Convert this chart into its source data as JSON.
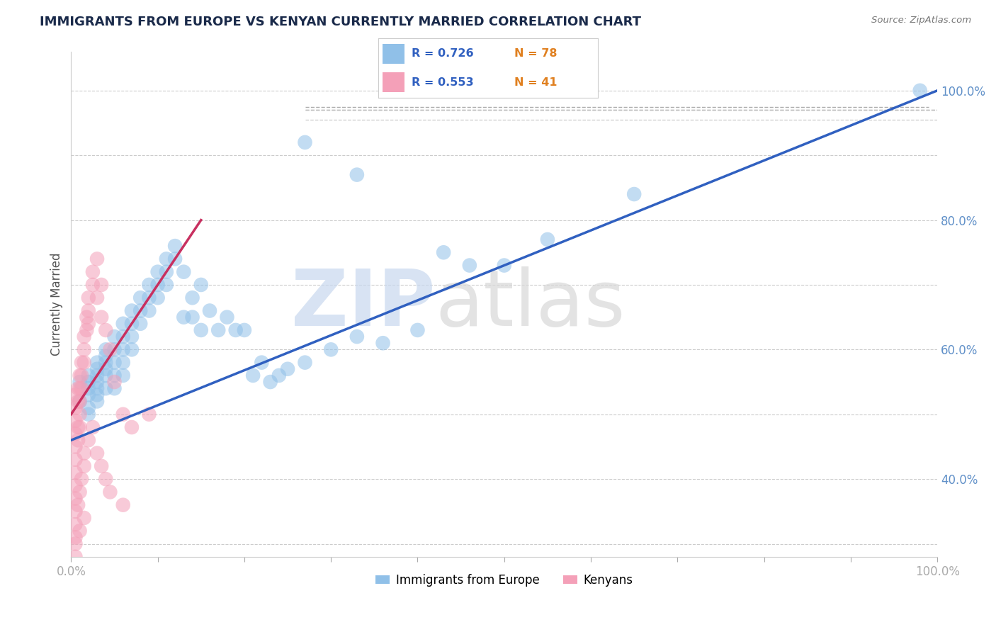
{
  "title": "IMMIGRANTS FROM EUROPE VS KENYAN CURRENTLY MARRIED CORRELATION CHART",
  "source": "Source: ZipAtlas.com",
  "ylabel_left": "Currently Married",
  "blue_color": "#90C0E8",
  "pink_color": "#F4A0B8",
  "blue_line_color": "#3060C0",
  "pink_line_color": "#C83060",
  "watermark_zip_color": "#C8D8EE",
  "watermark_atlas_color": "#D8D8D8",
  "right_tick_color": "#6090C8",
  "xlim": [
    0.0,
    1.0
  ],
  "ylim": [
    0.28,
    1.06
  ],
  "blue_trend": [
    0.0,
    1.0,
    0.46,
    1.0
  ],
  "pink_trend": [
    0.0,
    0.15,
    0.5,
    0.8
  ],
  "diag_ref": [
    0.27,
    1.0,
    0.97,
    0.97
  ],
  "grid_y": [
    0.3,
    0.4,
    0.5,
    0.6,
    0.7,
    0.8,
    0.9,
    1.0
  ],
  "right_yticks": [
    0.4,
    0.6,
    0.8,
    1.0
  ],
  "right_yticklabels": [
    "40.0%",
    "60.0%",
    "80.0%",
    "100.0%"
  ],
  "blue_x": [
    0.01,
    0.01,
    0.02,
    0.02,
    0.02,
    0.02,
    0.02,
    0.02,
    0.03,
    0.03,
    0.03,
    0.03,
    0.03,
    0.03,
    0.03,
    0.04,
    0.04,
    0.04,
    0.04,
    0.04,
    0.04,
    0.05,
    0.05,
    0.05,
    0.05,
    0.05,
    0.06,
    0.06,
    0.06,
    0.06,
    0.06,
    0.07,
    0.07,
    0.07,
    0.07,
    0.08,
    0.08,
    0.08,
    0.09,
    0.09,
    0.09,
    0.1,
    0.1,
    0.1,
    0.11,
    0.11,
    0.11,
    0.12,
    0.12,
    0.13,
    0.13,
    0.14,
    0.14,
    0.15,
    0.15,
    0.16,
    0.17,
    0.18,
    0.19,
    0.2,
    0.21,
    0.22,
    0.23,
    0.24,
    0.25,
    0.27,
    0.3,
    0.33,
    0.36,
    0.4,
    0.27,
    0.33,
    0.43,
    0.46,
    0.5,
    0.55,
    0.65,
    0.98
  ],
  "blue_y": [
    0.55,
    0.52,
    0.54,
    0.56,
    0.51,
    0.53,
    0.55,
    0.5,
    0.57,
    0.55,
    0.53,
    0.58,
    0.56,
    0.54,
    0.52,
    0.6,
    0.58,
    0.56,
    0.54,
    0.59,
    0.57,
    0.62,
    0.6,
    0.58,
    0.56,
    0.54,
    0.64,
    0.62,
    0.6,
    0.58,
    0.56,
    0.66,
    0.64,
    0.62,
    0.6,
    0.68,
    0.66,
    0.64,
    0.7,
    0.68,
    0.66,
    0.72,
    0.7,
    0.68,
    0.74,
    0.72,
    0.7,
    0.76,
    0.74,
    0.72,
    0.65,
    0.68,
    0.65,
    0.7,
    0.63,
    0.66,
    0.63,
    0.65,
    0.63,
    0.63,
    0.56,
    0.58,
    0.55,
    0.56,
    0.57,
    0.58,
    0.6,
    0.62,
    0.61,
    0.63,
    0.92,
    0.87,
    0.75,
    0.73,
    0.73,
    0.77,
    0.84,
    1.0
  ],
  "pink_x": [
    0.005,
    0.005,
    0.005,
    0.005,
    0.005,
    0.005,
    0.005,
    0.005,
    0.005,
    0.008,
    0.008,
    0.008,
    0.008,
    0.01,
    0.01,
    0.01,
    0.01,
    0.01,
    0.012,
    0.012,
    0.012,
    0.015,
    0.015,
    0.015,
    0.018,
    0.018,
    0.02,
    0.02,
    0.02,
    0.025,
    0.025,
    0.03,
    0.03,
    0.035,
    0.035,
    0.04,
    0.045,
    0.05,
    0.06,
    0.07,
    0.09
  ],
  "pink_y": [
    0.49,
    0.51,
    0.53,
    0.47,
    0.45,
    0.43,
    0.41,
    0.39,
    0.37,
    0.52,
    0.54,
    0.48,
    0.46,
    0.56,
    0.54,
    0.52,
    0.5,
    0.48,
    0.58,
    0.56,
    0.54,
    0.62,
    0.6,
    0.58,
    0.65,
    0.63,
    0.68,
    0.66,
    0.64,
    0.72,
    0.7,
    0.74,
    0.68,
    0.7,
    0.65,
    0.63,
    0.6,
    0.55,
    0.5,
    0.48,
    0.5
  ],
  "extra_pink_x": [
    0.005,
    0.005,
    0.005,
    0.008,
    0.01,
    0.012,
    0.015,
    0.015,
    0.02,
    0.025,
    0.03,
    0.035,
    0.04,
    0.045,
    0.06,
    0.005,
    0.005,
    0.01,
    0.015
  ],
  "extra_pink_y": [
    0.33,
    0.35,
    0.31,
    0.36,
    0.38,
    0.4,
    0.42,
    0.44,
    0.46,
    0.48,
    0.44,
    0.42,
    0.4,
    0.38,
    0.36,
    0.28,
    0.3,
    0.32,
    0.34
  ]
}
